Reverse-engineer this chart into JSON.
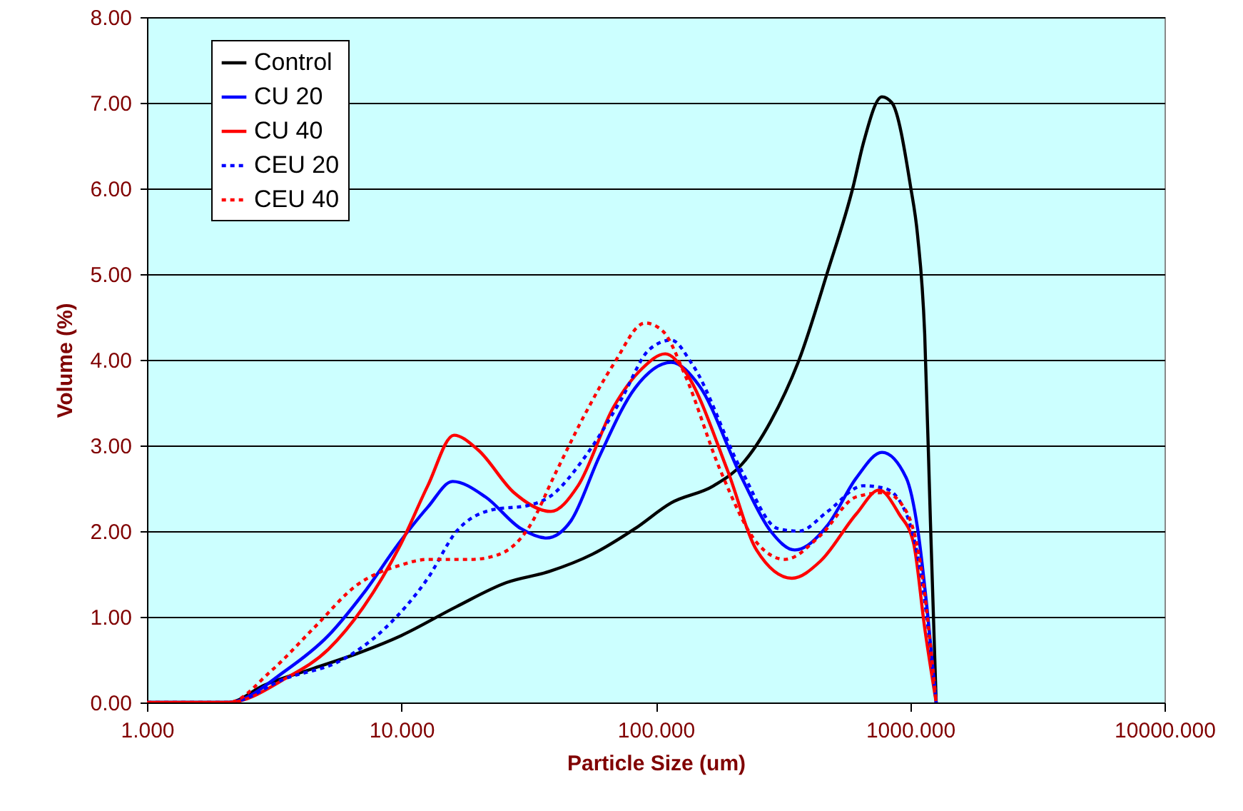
{
  "chart_data": {
    "type": "line",
    "xlabel": "Particle Size (um)",
    "ylabel": "Volume (%)",
    "log": "x",
    "xlim": [
      1,
      10000
    ],
    "xticks": [
      {
        "value": 1,
        "label": "1.000"
      },
      {
        "value": 10,
        "label": "10.000"
      },
      {
        "value": 100,
        "label": "100.000"
      },
      {
        "value": 1000,
        "label": "1000.000"
      },
      {
        "value": 10000,
        "label": "10000.000"
      }
    ],
    "ylim": [
      0,
      8
    ],
    "yticks": [
      {
        "value": 0,
        "label": "0.00"
      },
      {
        "value": 1,
        "label": "1.00"
      },
      {
        "value": 2,
        "label": "2.00"
      },
      {
        "value": 3,
        "label": "3.00"
      },
      {
        "value": 4,
        "label": "4.00"
      },
      {
        "value": 5,
        "label": "5.00"
      },
      {
        "value": 6,
        "label": "6.00"
      },
      {
        "value": 7,
        "label": "7.00"
      },
      {
        "value": 8,
        "label": "8.00"
      }
    ],
    "grid": "y",
    "legend": "top left",
    "series": [
      {
        "name": "Control",
        "color": "#000000",
        "line_style": "solid",
        "x": [
          1,
          2.09,
          2.88,
          4.53,
          6.68,
          9.97,
          16.5,
          25.9,
          38.2,
          56.3,
          82.9,
          115,
          169,
          218,
          283,
          366,
          474,
          598,
          655,
          775,
          848,
          1003,
          1070,
          1141,
          1202,
          1266
        ],
        "values": [
          0,
          0,
          0.2,
          0.4,
          0.57,
          0.78,
          1.12,
          1.4,
          1.53,
          1.73,
          2.03,
          2.33,
          2.53,
          2.78,
          3.28,
          4.0,
          5.03,
          6.03,
          6.53,
          7.07,
          7.0,
          6.03,
          5.45,
          4.3,
          2.1,
          0
        ]
      },
      {
        "name": "CU 20",
        "color": "#0000ff",
        "line_style": "solid",
        "x": [
          1,
          2.09,
          3.5,
          5.16,
          7.12,
          9.84,
          12.7,
          15.9,
          21.4,
          29.5,
          37.2,
          46.4,
          60,
          82.9,
          115,
          148,
          218,
          283,
          352,
          474,
          614,
          775,
          966,
          1070,
          1172,
          1266
        ],
        "values": [
          0,
          0,
          0.37,
          0.78,
          1.28,
          1.87,
          2.28,
          2.58,
          2.4,
          2.03,
          1.92,
          2.12,
          2.87,
          3.67,
          3.97,
          3.7,
          2.62,
          2.0,
          1.78,
          2.07,
          2.62,
          2.92,
          2.62,
          2.03,
          1.03,
          0
        ]
      },
      {
        "name": "CU 40",
        "color": "#ff0000",
        "line_style": "solid",
        "x": [
          1,
          2.09,
          3.5,
          5.16,
          7.12,
          9.84,
          12.7,
          16.1,
          20.0,
          27.7,
          38.7,
          49.5,
          68.3,
          88.5,
          109,
          130,
          192,
          249,
          343,
          444,
          614,
          755,
          905,
          1030,
          1141,
          1266
        ],
        "values": [
          0,
          0,
          0.28,
          0.62,
          1.12,
          1.82,
          2.53,
          3.12,
          2.95,
          2.45,
          2.23,
          2.53,
          3.45,
          3.9,
          4.07,
          3.87,
          2.7,
          1.78,
          1.45,
          1.65,
          2.2,
          2.48,
          2.2,
          1.87,
          0.87,
          0
        ]
      },
      {
        "name": "CEU 20",
        "color": "#0000ff",
        "line_style": "dotted",
        "x": [
          1,
          2.09,
          3.5,
          5.87,
          8.65,
          12.7,
          16.5,
          22.8,
          31.5,
          38.2,
          52.8,
          72.9,
          94.3,
          115,
          139,
          218,
          302,
          366,
          474,
          655,
          795,
          966,
          1098,
          1266
        ],
        "values": [
          0,
          0,
          0.28,
          0.5,
          0.87,
          1.45,
          2.0,
          2.25,
          2.3,
          2.4,
          2.87,
          3.53,
          4.12,
          4.23,
          3.95,
          2.7,
          2.03,
          2.0,
          2.23,
          2.53,
          2.5,
          2.2,
          1.53,
          0
        ]
      },
      {
        "name": "CEU 40",
        "color": "#ff0000",
        "line_style": "dotted",
        "x": [
          1,
          2.09,
          3.08,
          4.53,
          6.68,
          9.84,
          12.7,
          18.8,
          24.3,
          31.5,
          40.7,
          52.8,
          68.3,
          90.8,
          107,
          130,
          180,
          249,
          322,
          444,
          614,
          795,
          966,
          1098,
          1266
        ],
        "values": [
          0,
          0,
          0.37,
          0.87,
          1.37,
          1.6,
          1.67,
          1.67,
          1.73,
          2.03,
          2.7,
          3.37,
          3.95,
          4.43,
          4.33,
          3.83,
          2.7,
          1.87,
          1.67,
          1.95,
          2.4,
          2.45,
          2.23,
          1.62,
          0
        ]
      }
    ]
  }
}
